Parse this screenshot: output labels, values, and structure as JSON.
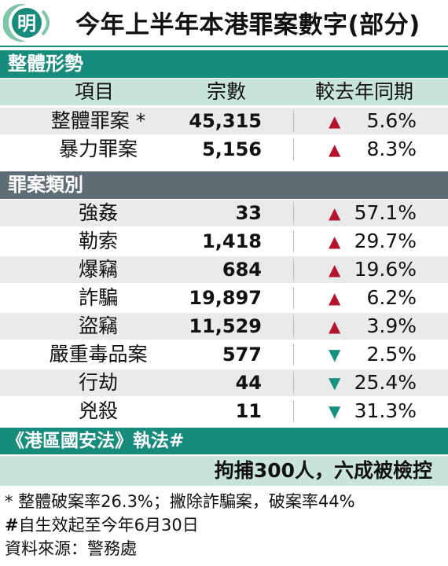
{
  "title": {
    "logo_char": "明",
    "text": "今年上半年本港罪案數字(部分)"
  },
  "section1": {
    "header": "整體形勢",
    "columns": {
      "item": "項目",
      "count": "宗數",
      "change": "較去年同期"
    },
    "rows": [
      {
        "item": "整體罪案 *",
        "count": "45,315",
        "direction": "up",
        "change": "5.6%"
      },
      {
        "item": "暴力罪案",
        "count": "5,156",
        "direction": "up",
        "change": "8.3%"
      }
    ]
  },
  "section2": {
    "header": "罪案類別",
    "rows": [
      {
        "item": "強姦",
        "count": "33",
        "direction": "up",
        "change": "57.1%"
      },
      {
        "item": "勒索",
        "count": "1,418",
        "direction": "up",
        "change": "29.7%"
      },
      {
        "item": "爆竊",
        "count": "684",
        "direction": "up",
        "change": "19.6%"
      },
      {
        "item": "詐騙",
        "count": "19,897",
        "direction": "up",
        "change": "6.2%"
      },
      {
        "item": "盜竊",
        "count": "11,529",
        "direction": "up",
        "change": "3.9%"
      },
      {
        "item": "嚴重毒品案",
        "count": "577",
        "direction": "down",
        "change": "2.5%"
      },
      {
        "item": "行劫",
        "count": "44",
        "direction": "down",
        "change": "25.4%"
      },
      {
        "item": "兇殺",
        "count": "11",
        "direction": "down",
        "change": "31.3%"
      }
    ]
  },
  "law": {
    "header": "《港區國安法》執法#",
    "body": "拘捕300人，六成被檢控"
  },
  "notes": {
    "n1": "* 整體破案率26.3%；撇除詐騙案，破案率44%",
    "n2_mark": "#",
    "n2": "自生效起至今年6月30日",
    "n3": "資料來源：警務處"
  },
  "colors": {
    "teal": "#178c7c",
    "grey": "#5e6d73",
    "up": "#b5122b",
    "down": "#14917f",
    "light_teal": "#c9e4dd"
  }
}
